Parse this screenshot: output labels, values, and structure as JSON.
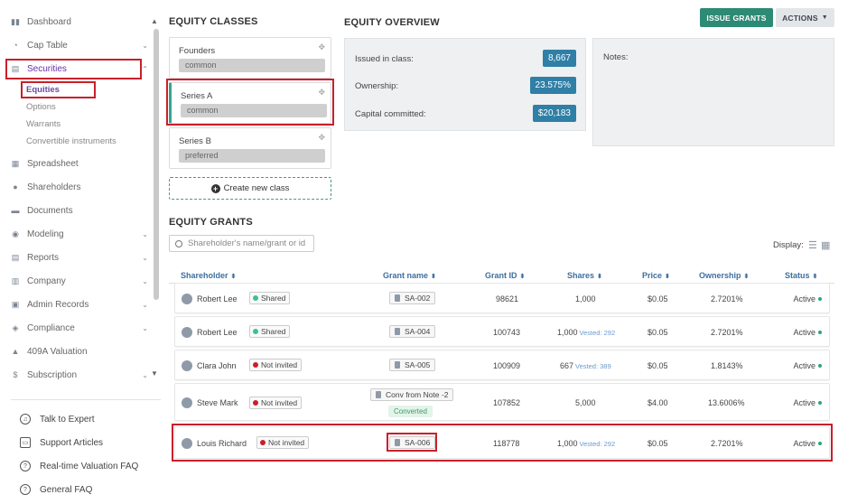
{
  "sidebar": {
    "items": [
      {
        "label": "Dashboard",
        "icon": "dashboard-icon"
      },
      {
        "label": "Cap Table",
        "icon": "pie-chart-icon"
      },
      {
        "label": "Securities",
        "icon": "clipboard-icon"
      },
      {
        "label": "Spreadsheet",
        "icon": "spreadsheet-icon"
      },
      {
        "label": "Shareholders",
        "icon": "person-icon"
      },
      {
        "label": "Documents",
        "icon": "folder-icon"
      },
      {
        "label": "Modeling",
        "icon": "lightbulb-icon"
      },
      {
        "label": "Reports",
        "icon": "report-icon"
      },
      {
        "label": "Company",
        "icon": "building-icon"
      },
      {
        "label": "Admin Records",
        "icon": "records-icon"
      },
      {
        "label": "Compliance",
        "icon": "shield-icon"
      },
      {
        "label": "409A Valuation",
        "icon": "valuation-icon"
      },
      {
        "label": "Subscription",
        "icon": "dollar-icon"
      }
    ],
    "sub_items": [
      "Equities",
      "Options",
      "Warrants",
      "Convertible instruments"
    ],
    "help": [
      "Talk to Expert",
      "Support Articles",
      "Real-time Valuation FAQ",
      "General FAQ"
    ]
  },
  "classes": {
    "title": "EQUITY CLASSES",
    "cards": [
      {
        "name": "Founders",
        "type": "common"
      },
      {
        "name": "Series A",
        "type": "common"
      },
      {
        "name": "Series B",
        "type": "preferred"
      }
    ],
    "create_label": "Create new class"
  },
  "overview": {
    "title": "EQUITY OVERVIEW",
    "issued_label": "Issued in class:",
    "issued_value": "8,667",
    "ownership_label": "Ownership:",
    "ownership_value": "23.575%",
    "capital_label": "Capital committed:",
    "capital_value": "$20,183",
    "notes_label": "Notes:"
  },
  "toolbar": {
    "issue_label": "ISSUE GRANTS",
    "actions_label": "ACTIONS"
  },
  "grants": {
    "title": "EQUITY GRANTS",
    "search_placeholder": "Shareholder's name/grant or id",
    "display_label": "Display:",
    "headers": [
      "Shareholder",
      "Grant name",
      "Grant ID",
      "Shares",
      "Price",
      "Ownership",
      "Status"
    ],
    "rows": [
      {
        "name": "Robert Lee",
        "badge": "Shared",
        "badge_color": "#3bbf9a",
        "grant": "SA-002",
        "id": "98621",
        "shares": "1,000",
        "vested": "",
        "price": "$0.05",
        "ownership": "2.7201%",
        "status": "Active"
      },
      {
        "name": "Robert Lee",
        "badge": "Shared",
        "badge_color": "#3bbf9a",
        "grant": "SA-004",
        "id": "100743",
        "shares": "1,000",
        "vested": "Vested: 292",
        "price": "$0.05",
        "ownership": "2.7201%",
        "status": "Active"
      },
      {
        "name": "Clara John",
        "badge": "Not invited",
        "badge_color": "#c8202a",
        "grant": "SA-005",
        "id": "100909",
        "shares": "667",
        "vested": "Vested: 389",
        "price": "$0.05",
        "ownership": "1.8143%",
        "status": "Active"
      },
      {
        "name": "Steve Mark",
        "badge": "Not invited",
        "badge_color": "#c8202a",
        "grant": "Conv from Note -2",
        "converted": "Converted",
        "id": "107852",
        "shares": "5,000",
        "vested": "",
        "price": "$4.00",
        "ownership": "13.6006%",
        "status": "Active"
      },
      {
        "name": "Louis Richard",
        "badge": "Not invited",
        "badge_color": "#c8202a",
        "grant": "SA-006",
        "id": "118778",
        "shares": "1,000",
        "vested": "Vested: 292",
        "price": "$0.05",
        "ownership": "2.7201%",
        "status": "Active"
      }
    ]
  }
}
